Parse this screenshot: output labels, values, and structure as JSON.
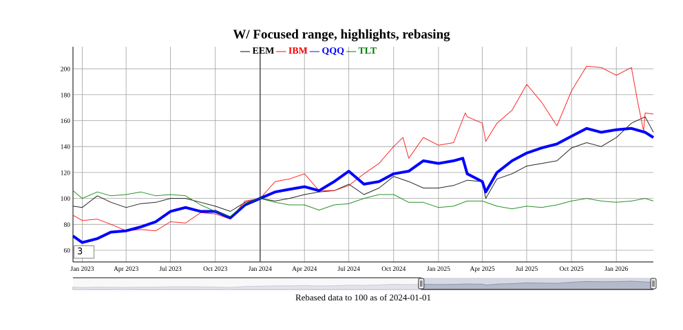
{
  "chart_data": {
    "type": "line",
    "title": "W/ Focused range, highlights, rebasing",
    "xlabel": "Rebased data to 100 as of 2024-01-01",
    "ylabel": "",
    "xlim": [
      "2022-12-13",
      "2026-03-18"
    ],
    "ylim": [
      51,
      217
    ],
    "grid": true,
    "legend_placement": "top",
    "highlight_date": "2024-01-01",
    "highlighted_series": "QQQ",
    "roll_period": "3",
    "x_ticks": [
      "Jan 2023",
      "Apr 2023",
      "Jul 2023",
      "Oct 2023",
      "Jan 2024",
      "Apr 2024",
      "Jul 2024",
      "Oct 2024",
      "Jan 2025",
      "Apr 2025",
      "Jul 2025",
      "Oct 2025",
      "Jan 2026"
    ],
    "x_tick_dates": [
      "2023-01-01",
      "2023-04-01",
      "2023-07-01",
      "2023-10-01",
      "2024-01-01",
      "2024-04-01",
      "2024-07-01",
      "2024-10-01",
      "2025-01-01",
      "2025-04-01",
      "2025-07-01",
      "2025-10-01",
      "2026-01-01"
    ],
    "y_ticks": [
      60,
      80,
      100,
      120,
      140,
      160,
      180,
      200
    ],
    "range_selector": {
      "selected_from_fraction": 0.6,
      "selected_to_fraction": 1.0
    },
    "series": [
      {
        "name": "EEM",
        "color": "#000000",
        "points": [
          [
            "2022-12-13",
            94
          ],
          [
            "2023-01-01",
            93
          ],
          [
            "2023-02-01",
            102
          ],
          [
            "2023-03-01",
            97
          ],
          [
            "2023-04-01",
            93
          ],
          [
            "2023-05-01",
            96
          ],
          [
            "2023-06-01",
            97
          ],
          [
            "2023-07-01",
            100
          ],
          [
            "2023-08-01",
            100
          ],
          [
            "2023-09-01",
            97
          ],
          [
            "2023-10-01",
            94
          ],
          [
            "2023-11-01",
            90
          ],
          [
            "2023-12-01",
            97
          ],
          [
            "2024-01-01",
            100
          ],
          [
            "2024-02-01",
            98
          ],
          [
            "2024-03-01",
            100
          ],
          [
            "2024-04-01",
            103
          ],
          [
            "2024-05-01",
            105
          ],
          [
            "2024-06-01",
            106
          ],
          [
            "2024-07-01",
            111
          ],
          [
            "2024-08-01",
            103
          ],
          [
            "2024-09-01",
            108
          ],
          [
            "2024-10-01",
            117
          ],
          [
            "2024-11-01",
            113
          ],
          [
            "2024-12-01",
            108
          ],
          [
            "2025-01-01",
            108
          ],
          [
            "2025-02-01",
            110
          ],
          [
            "2025-03-01",
            114
          ],
          [
            "2025-04-01",
            113
          ],
          [
            "2025-04-08",
            100
          ],
          [
            "2025-05-01",
            115
          ],
          [
            "2025-06-01",
            119
          ],
          [
            "2025-07-01",
            125
          ],
          [
            "2025-08-01",
            127
          ],
          [
            "2025-09-01",
            129
          ],
          [
            "2025-10-01",
            139
          ],
          [
            "2025-11-01",
            143
          ],
          [
            "2025-12-01",
            140
          ],
          [
            "2026-01-01",
            147
          ],
          [
            "2026-02-01",
            158
          ],
          [
            "2026-03-01",
            163
          ],
          [
            "2026-03-18",
            151
          ]
        ]
      },
      {
        "name": "IBM",
        "color": "#ff0000",
        "points": [
          [
            "2022-12-13",
            87
          ],
          [
            "2023-01-01",
            83
          ],
          [
            "2023-02-01",
            84
          ],
          [
            "2023-03-01",
            80
          ],
          [
            "2023-04-01",
            75
          ],
          [
            "2023-05-01",
            76
          ],
          [
            "2023-06-01",
            75
          ],
          [
            "2023-07-01",
            82
          ],
          [
            "2023-08-01",
            81
          ],
          [
            "2023-09-01",
            89
          ],
          [
            "2023-10-01",
            88
          ],
          [
            "2023-11-01",
            84
          ],
          [
            "2023-12-01",
            98
          ],
          [
            "2024-01-01",
            100
          ],
          [
            "2024-02-01",
            113
          ],
          [
            "2024-03-01",
            115
          ],
          [
            "2024-04-01",
            119
          ],
          [
            "2024-05-01",
            106
          ],
          [
            "2024-06-01",
            106
          ],
          [
            "2024-07-01",
            110
          ],
          [
            "2024-08-01",
            119
          ],
          [
            "2024-09-01",
            127
          ],
          [
            "2024-10-01",
            140
          ],
          [
            "2024-10-20",
            147
          ],
          [
            "2024-11-01",
            131
          ],
          [
            "2024-12-01",
            147
          ],
          [
            "2025-01-01",
            141
          ],
          [
            "2025-02-01",
            143
          ],
          [
            "2025-02-25",
            166
          ],
          [
            "2025-03-01",
            163
          ],
          [
            "2025-04-01",
            158
          ],
          [
            "2025-04-08",
            144
          ],
          [
            "2025-05-01",
            158
          ],
          [
            "2025-06-01",
            168
          ],
          [
            "2025-07-01",
            188
          ],
          [
            "2025-08-01",
            174
          ],
          [
            "2025-09-01",
            156
          ],
          [
            "2025-10-01",
            183
          ],
          [
            "2025-11-01",
            202
          ],
          [
            "2025-12-01",
            201
          ],
          [
            "2026-01-01",
            195
          ],
          [
            "2026-02-01",
            201
          ],
          [
            "2026-02-14",
            174
          ],
          [
            "2026-02-26",
            152
          ],
          [
            "2026-03-01",
            166
          ],
          [
            "2026-03-18",
            165
          ]
        ]
      },
      {
        "name": "QQQ",
        "color": "#0000ff",
        "points": [
          [
            "2022-12-13",
            71
          ],
          [
            "2023-01-01",
            66
          ],
          [
            "2023-02-01",
            69
          ],
          [
            "2023-03-01",
            74
          ],
          [
            "2023-04-01",
            75
          ],
          [
            "2023-05-01",
            78
          ],
          [
            "2023-06-01",
            82
          ],
          [
            "2023-07-01",
            90
          ],
          [
            "2023-08-01",
            93
          ],
          [
            "2023-09-01",
            90
          ],
          [
            "2023-10-01",
            90
          ],
          [
            "2023-11-01",
            85
          ],
          [
            "2023-12-01",
            95
          ],
          [
            "2024-01-01",
            100
          ],
          [
            "2024-02-01",
            105
          ],
          [
            "2024-03-01",
            107
          ],
          [
            "2024-04-01",
            109
          ],
          [
            "2024-05-01",
            106
          ],
          [
            "2024-06-01",
            113
          ],
          [
            "2024-07-01",
            121
          ],
          [
            "2024-08-01",
            111
          ],
          [
            "2024-09-01",
            113
          ],
          [
            "2024-10-01",
            119
          ],
          [
            "2024-11-01",
            121
          ],
          [
            "2024-12-01",
            129
          ],
          [
            "2025-01-01",
            127
          ],
          [
            "2025-02-01",
            129
          ],
          [
            "2025-02-20",
            131
          ],
          [
            "2025-03-01",
            119
          ],
          [
            "2025-04-01",
            113
          ],
          [
            "2025-04-08",
            105
          ],
          [
            "2025-05-01",
            120
          ],
          [
            "2025-06-01",
            129
          ],
          [
            "2025-07-01",
            135
          ],
          [
            "2025-08-01",
            139
          ],
          [
            "2025-09-01",
            142
          ],
          [
            "2025-10-01",
            148
          ],
          [
            "2025-11-01",
            154
          ],
          [
            "2025-12-01",
            151
          ],
          [
            "2026-01-01",
            153
          ],
          [
            "2026-02-01",
            154
          ],
          [
            "2026-03-01",
            151
          ],
          [
            "2026-03-18",
            147
          ]
        ]
      },
      {
        "name": "TLT",
        "color": "#008000",
        "points": [
          [
            "2022-12-13",
            106
          ],
          [
            "2023-01-01",
            100
          ],
          [
            "2023-02-01",
            105
          ],
          [
            "2023-03-01",
            102
          ],
          [
            "2023-04-01",
            103
          ],
          [
            "2023-05-01",
            105
          ],
          [
            "2023-06-01",
            102
          ],
          [
            "2023-07-01",
            103
          ],
          [
            "2023-08-01",
            102
          ],
          [
            "2023-09-01",
            95
          ],
          [
            "2023-10-01",
            90
          ],
          [
            "2023-11-01",
            86
          ],
          [
            "2023-12-01",
            96
          ],
          [
            "2024-01-01",
            100
          ],
          [
            "2024-02-01",
            97
          ],
          [
            "2024-03-01",
            95
          ],
          [
            "2024-04-01",
            95
          ],
          [
            "2024-05-01",
            91
          ],
          [
            "2024-06-01",
            95
          ],
          [
            "2024-07-01",
            96
          ],
          [
            "2024-08-01",
            100
          ],
          [
            "2024-09-01",
            103
          ],
          [
            "2024-10-01",
            103
          ],
          [
            "2024-11-01",
            97
          ],
          [
            "2024-12-01",
            97
          ],
          [
            "2025-01-01",
            93
          ],
          [
            "2025-02-01",
            94
          ],
          [
            "2025-03-01",
            98
          ],
          [
            "2025-04-01",
            98
          ],
          [
            "2025-05-01",
            94
          ],
          [
            "2025-06-01",
            92
          ],
          [
            "2025-07-01",
            94
          ],
          [
            "2025-08-01",
            93
          ],
          [
            "2025-09-01",
            95
          ],
          [
            "2025-10-01",
            98
          ],
          [
            "2025-11-01",
            100
          ],
          [
            "2025-12-01",
            98
          ],
          [
            "2026-01-01",
            97
          ],
          [
            "2026-02-01",
            98
          ],
          [
            "2026-03-01",
            100
          ],
          [
            "2026-03-18",
            98
          ]
        ]
      }
    ]
  }
}
